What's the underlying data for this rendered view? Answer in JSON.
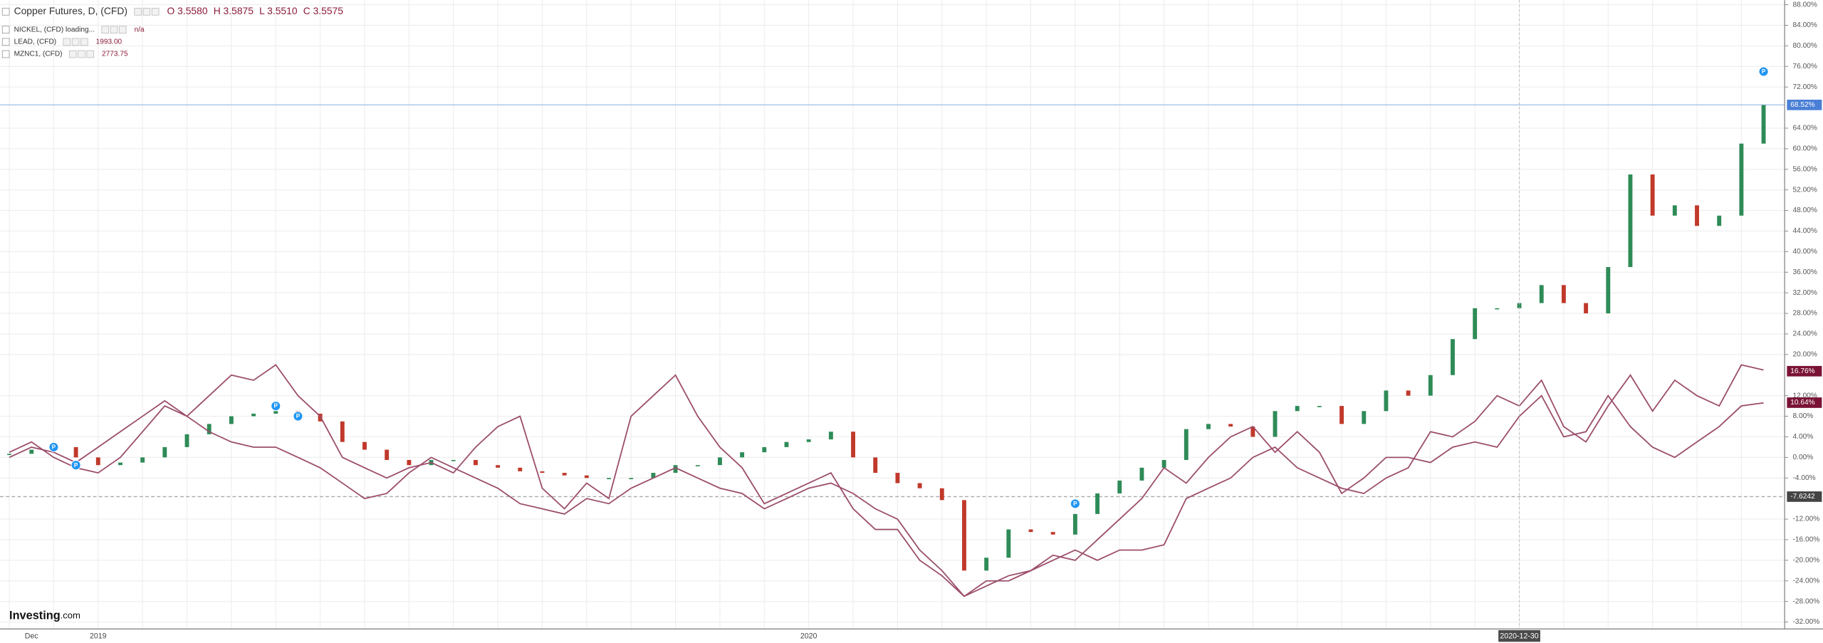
{
  "chart_data": {
    "type": "candlestick-compare",
    "legend": [
      {
        "name": "Copper Futures, D, (CFD)",
        "values": [
          "O 3.5580",
          "H 3.5875",
          "L 3.5510",
          "C 3.5575"
        ]
      },
      {
        "name": "NICKEL, (CFD) loading...",
        "values": [
          "n/a"
        ]
      },
      {
        "name": "LEAD, (CFD)",
        "values": [
          "1993.00"
        ]
      },
      {
        "name": "MZNC1, (CFD)",
        "values": [
          "2773.75"
        ]
      }
    ],
    "brand": [
      "Investing",
      ".com"
    ],
    "categories": [
      null,
      "Dec",
      null,
      null,
      "2019",
      null,
      null,
      null,
      null,
      null,
      null,
      null,
      null,
      null,
      null,
      null,
      null,
      null,
      null,
      null,
      null,
      null,
      null,
      null,
      null,
      null,
      null,
      null,
      null,
      null,
      null,
      null,
      null,
      null,
      null,
      null,
      "2020",
      null,
      null,
      null,
      null,
      null,
      null,
      null,
      null,
      null,
      null,
      null,
      null,
      null,
      null,
      null,
      null,
      null,
      null,
      null,
      null,
      null,
      null,
      null,
      null,
      null,
      null,
      null,
      null,
      null,
      null,
      null,
      "2020-12-30",
      null,
      null,
      null,
      null,
      null,
      null,
      null,
      null,
      null,
      null,
      null
    ],
    "series": [
      {
        "name": "Copper Futures",
        "style": "candles",
        "up_color": "#2e8b57",
        "down_color": "#c0392b",
        "values": [
          0.7,
          1.5,
          2,
          0,
          -1.5,
          -1,
          0,
          2,
          4.5,
          6.5,
          8,
          8.5,
          9,
          8.5,
          7,
          3,
          1.5,
          -0.5,
          -1.5,
          -0.5,
          -0.5,
          -1.5,
          -2,
          -2.7,
          -3,
          -3.5,
          -4,
          -4,
          -4,
          -3,
          -1.5,
          -1.5,
          0,
          1,
          2,
          3,
          3.5,
          5,
          0,
          -3,
          -5,
          -6,
          -8.3,
          -22,
          -19.5,
          -14,
          -14.5,
          -15,
          -11,
          -7,
          -4.5,
          -2,
          -0.5,
          5.5,
          6.5,
          6,
          4,
          9,
          10,
          10,
          6.5,
          9,
          13,
          12,
          16,
          23,
          29,
          29,
          30,
          33.5,
          30,
          28,
          37,
          55,
          47,
          49,
          45,
          47,
          61,
          68.5
        ]
      },
      {
        "name": "LEAD",
        "style": "line",
        "color": "#9b4d6b",
        "values": [
          1,
          3,
          0,
          -2,
          -3,
          0,
          5,
          10,
          8,
          12,
          16,
          15,
          18,
          12,
          8,
          0,
          -2,
          -4,
          -2,
          -1,
          -3,
          2,
          6,
          8,
          -6,
          -10,
          -5,
          -8,
          8,
          12,
          16,
          8,
          2,
          -2,
          -9,
          -7,
          -5,
          -3,
          -10,
          -14,
          -14,
          -20,
          -23,
          -27,
          -24,
          -24,
          -22,
          -20,
          -18,
          -20,
          -18,
          -18,
          -17,
          -8,
          -6,
          -4,
          0,
          2,
          -2,
          -4,
          -6,
          -7,
          -4,
          -2,
          5,
          4,
          7,
          12,
          10,
          15,
          6,
          3,
          10,
          16,
          9,
          15,
          12,
          10,
          18,
          17
        ]
      },
      {
        "name": "MZNC1",
        "style": "line",
        "color": "#9b4d6b",
        "values": [
          0,
          2,
          1,
          -1,
          2,
          5,
          8,
          11,
          8,
          5,
          3,
          2,
          2,
          0,
          -2,
          -5,
          -8,
          -7,
          -3,
          0,
          -2,
          -4,
          -6,
          -9,
          -10,
          -11,
          -8,
          -9,
          -6,
          -4,
          -2,
          -4,
          -6,
          -7,
          -10,
          -8,
          -6,
          -5,
          -7,
          -10,
          -12,
          -18,
          -22,
          -27,
          -25,
          -23,
          -22,
          -19,
          -20,
          -16,
          -12,
          -8,
          -2,
          -5,
          0,
          4,
          6,
          1,
          5,
          1,
          -7,
          -4,
          0,
          0,
          -1,
          2,
          3,
          2,
          8,
          12,
          4,
          5,
          12,
          6,
          2,
          0,
          3,
          6,
          10,
          10.6
        ]
      }
    ],
    "price_lines": [
      {
        "value": 68.52,
        "label": "68.52%",
        "color": "#4a7fd6",
        "dashed": false
      },
      {
        "value": 16.76,
        "label": "16.76%",
        "color": "#7a1236",
        "dashed": false
      },
      {
        "value": 10.64,
        "label": "10.64%",
        "color": "#7a1236",
        "dashed": false
      },
      {
        "value": -7.6242,
        "label": "-7.6242",
        "color": "#444444",
        "dashed": true
      }
    ],
    "annotations": [
      {
        "text": "P",
        "index": 2,
        "value": 2
      },
      {
        "text": "P",
        "index": 3,
        "value": -1.5
      },
      {
        "text": "P",
        "index": 12,
        "value": 10
      },
      {
        "text": "P",
        "index": 13,
        "value": 8
      },
      {
        "text": "P",
        "index": 48,
        "value": -9
      },
      {
        "text": "P",
        "index": 79,
        "value": 75
      }
    ],
    "ylim": [
      -32,
      88
    ],
    "yticks": [
      {
        "value": 88,
        "label": "88.00%"
      },
      {
        "value": 84,
        "label": "84.00%"
      },
      {
        "value": 80,
        "label": "80.00%"
      },
      {
        "value": 76,
        "label": "76.00%"
      },
      {
        "value": 72,
        "label": "72.00%"
      },
      {
        "value": 64,
        "label": "64.00%"
      },
      {
        "value": 60,
        "label": "60.00%"
      },
      {
        "value": 56,
        "label": "56.00%"
      },
      {
        "value": 52,
        "label": "52.00%"
      },
      {
        "value": 48,
        "label": "48.00%"
      },
      {
        "value": 44,
        "label": "44.00%"
      },
      {
        "value": 40,
        "label": "40.00%"
      },
      {
        "value": 36,
        "label": "36.00%"
      },
      {
        "value": 32,
        "label": "32.00%"
      },
      {
        "value": 28,
        "label": "28.00%"
      },
      {
        "value": 24,
        "label": "24.00%"
      },
      {
        "value": 20,
        "label": "20.00%"
      },
      {
        "value": 12,
        "label": "12.00%"
      },
      {
        "value": 8,
        "label": "8.00%"
      },
      {
        "value": 4,
        "label": "4.00%"
      },
      {
        "value": 0,
        "label": "0.00%"
      },
      {
        "value": -4,
        "label": "-4.00%"
      },
      {
        "value": -12,
        "label": "-12.00%"
      },
      {
        "value": -16,
        "label": "-16.00%"
      },
      {
        "value": -20,
        "label": "-20.00%"
      },
      {
        "value": -24,
        "label": "-24.00%"
      },
      {
        "value": -28,
        "label": "-28.00%"
      },
      {
        "value": -32,
        "label": "-32.00%"
      }
    ],
    "grid": true
  }
}
